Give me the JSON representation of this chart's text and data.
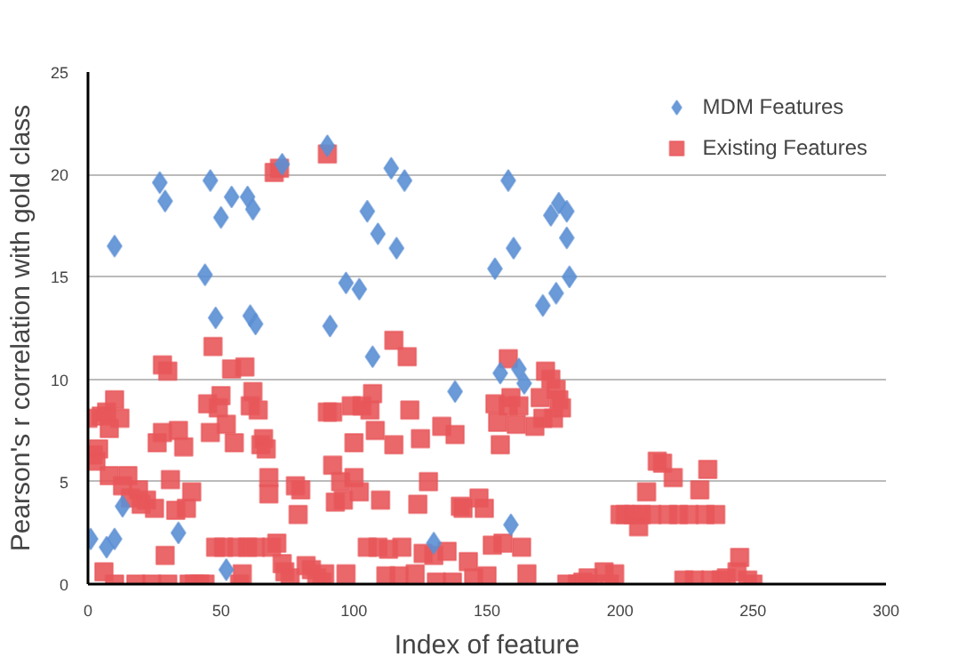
{
  "chart_data": {
    "type": "scatter",
    "xlabel": "Index of feature",
    "ylabel": "Pearson's r correlation with gold class",
    "xlim": [
      0,
      300
    ],
    "ylim": [
      0,
      25
    ],
    "xticks": [
      0,
      50,
      100,
      150,
      200,
      250,
      300
    ],
    "yticks": [
      0,
      5,
      10,
      15,
      20,
      25
    ],
    "grid": "y",
    "legend": "top right",
    "series": [
      {
        "name": "MDM Features",
        "color": "#5b8fd4",
        "marker": "diamond",
        "x": [
          1,
          7,
          10,
          10,
          13,
          27,
          29,
          34,
          44,
          46,
          48,
          50,
          52,
          54,
          60,
          62,
          61,
          63,
          73,
          90,
          91,
          97,
          102,
          105,
          107,
          109,
          114,
          116,
          119,
          130,
          138,
          153,
          155,
          158,
          159,
          160,
          162,
          164,
          171,
          174,
          177,
          180,
          176,
          180,
          181
        ],
        "values": [
          2.2,
          1.8,
          2.2,
          16.5,
          3.8,
          19.6,
          18.7,
          2.5,
          15.1,
          19.7,
          13,
          17.9,
          0.7,
          18.9,
          18.9,
          18.3,
          13.1,
          12.7,
          20.5,
          21.4,
          12.6,
          14.7,
          14.4,
          18.2,
          11.1,
          17.1,
          20.3,
          16.4,
          19.7,
          2.0,
          9.4,
          15.4,
          10.3,
          19.7,
          2.9,
          16.4,
          10.5,
          9.8,
          13.6,
          18,
          18.6,
          18.2,
          14.2,
          16.9,
          15
        ]
      },
      {
        "name": "Existing Features",
        "color": "#e8575a",
        "marker": "square",
        "x": [
          0,
          2,
          3,
          4,
          5,
          6,
          7,
          8,
          8,
          10,
          10,
          12,
          13,
          15,
          16,
          18,
          19,
          20,
          22,
          24,
          25,
          26,
          28,
          28,
          29,
          30,
          30,
          31,
          33,
          34,
          36,
          37,
          38,
          39,
          40,
          42,
          44,
          45,
          46,
          47,
          48,
          49,
          50,
          51,
          52,
          54,
          55,
          56,
          57,
          58,
          59,
          60,
          61,
          62,
          63,
          64,
          65,
          66,
          67,
          68,
          68,
          69,
          70,
          71,
          72,
          73,
          74,
          76,
          78,
          79,
          80,
          82,
          84,
          86,
          88,
          89,
          90,
          90,
          92,
          92,
          93,
          95,
          96,
          97,
          99,
          100,
          100,
          102,
          103,
          105,
          106,
          107,
          108,
          109,
          110,
          112,
          113,
          115,
          115,
          117,
          118,
          120,
          121,
          123,
          124,
          125,
          126,
          128,
          130,
          131,
          133,
          135,
          137,
          138,
          140,
          141,
          143,
          145,
          147,
          149,
          150,
          152,
          153,
          154,
          155,
          156,
          158,
          158,
          159,
          161,
          162,
          163,
          165,
          168,
          170,
          171,
          172,
          174,
          175,
          176,
          177,
          178,
          180,
          184,
          186,
          188,
          190,
          194,
          196,
          198,
          200,
          202,
          205,
          207,
          208,
          210,
          212,
          214,
          216,
          218,
          220,
          222,
          224,
          226,
          228,
          230,
          232,
          233,
          234,
          236,
          238,
          240,
          244,
          245,
          248,
          250
        ],
        "values": [
          8.1,
          6.3,
          6,
          6.6,
          8.2,
          0.6,
          8.4,
          5.3,
          7.6,
          9,
          0,
          8.1,
          4.8,
          5.3,
          4.2,
          0,
          4.6,
          3.9,
          4.1,
          0,
          3.7,
          6.9,
          7.4,
          10.7,
          1.4,
          10.4,
          0,
          5.1,
          3.6,
          7.5,
          6.7,
          3.7,
          0,
          4.5,
          0,
          0,
          0,
          8.8,
          7.4,
          11.6,
          1.8,
          8.6,
          9.2,
          1.8,
          7.8,
          10.5,
          6.9,
          1.8,
          0,
          0.5,
          10.6,
          1.8,
          8.7,
          9.4,
          1.8,
          8.5,
          6.8,
          7.1,
          6.6,
          5.2,
          4.4,
          1.8,
          20.1,
          2,
          20.3,
          1,
          0.6,
          0.3,
          4.8,
          3.4,
          4.6,
          0.9,
          0.7,
          0.3,
          0.1,
          0.5,
          21,
          8.4,
          5.8,
          8.4,
          4,
          5,
          4.1,
          0.5,
          8.7,
          5.2,
          6.9,
          4.5,
          8.7,
          1.8,
          8.5,
          9.3,
          7.5,
          1.8,
          4.1,
          0.4,
          1.7,
          11.9,
          6.8,
          0.4,
          1.8,
          11.1,
          8.5,
          0.5,
          3.9,
          7.1,
          1.5,
          5,
          1.4,
          0.1,
          7.7,
          1.6,
          0.1,
          7.3,
          3.8,
          3.7,
          1.1,
          0.3,
          4.2,
          3.7,
          0.4,
          1.9,
          8.8,
          7.9,
          6.8,
          2,
          8.7,
          11,
          9.1,
          7.8,
          8.7,
          1.8,
          0.5,
          7.7,
          9.1,
          8.1,
          10.4,
          10,
          8.1,
          9.5,
          9,
          8.6,
          0,
          0,
          0.1,
          0.3,
          0,
          0.6,
          0,
          0.5,
          3.4,
          3.4,
          3.4,
          2.8,
          3.4,
          4.5,
          3.4,
          6,
          5.9,
          3.4,
          5.2,
          3.4,
          0.2,
          3.4,
          0.2,
          4.6,
          3.4,
          5.6,
          0.2,
          3.4,
          0.2,
          0.3,
          0.6,
          1.3,
          0.2,
          0
        ]
      }
    ]
  }
}
